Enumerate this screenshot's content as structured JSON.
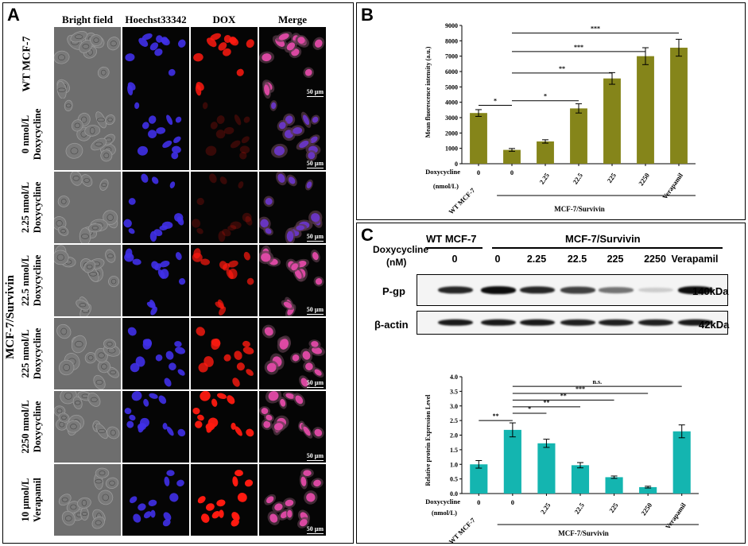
{
  "panel_a": {
    "label": "A",
    "columns": [
      "Bright field",
      "Hoechst33342",
      "DOX",
      "Merge"
    ],
    "wt_label": "WT MCF-7",
    "group_label": "MCF-7/Survivin",
    "rows": [
      {
        "l1": "0 nmol/L",
        "l2": "Doxycycline"
      },
      {
        "l1": "2.25 nmol/L",
        "l2": "Doxycycline"
      },
      {
        "l1": "22.5 nmol/L",
        "l2": "Doxycycline"
      },
      {
        "l1": "225 nmol/L",
        "l2": "Doxycycline"
      },
      {
        "l1": "2250 nmol/L",
        "l2": "Doxycycline"
      },
      {
        "l1": "10 μmol/L",
        "l2": "Verapamil"
      }
    ],
    "scale_bar": "50 μm",
    "dox_intensity": [
      0.85,
      0.2,
      0.2,
      0.7,
      0.8,
      0.95,
      1.0
    ]
  },
  "panel_b": {
    "label": "B",
    "chart_data": {
      "type": "bar",
      "ylabel": "Mean fluorescence intensity (a.u.)",
      "ylim": [
        0,
        9000
      ],
      "yticks": [
        "0",
        "1000",
        "2000",
        "3000",
        "4000",
        "5000",
        "6000",
        "7000",
        "8000",
        "9000"
      ],
      "categories": [
        "0",
        "0",
        "2.25",
        "22.5",
        "225",
        "2250",
        "Verapamil"
      ],
      "values": [
        3300,
        900,
        1450,
        3600,
        5550,
        7000,
        7550
      ],
      "errors": [
        220,
        90,
        110,
        300,
        380,
        550,
        550
      ],
      "x_row_label": "Doxycycline",
      "x_row_unit": "(nmol/L)",
      "wt_label": "WT MCF-7",
      "group_label": "MCF-7/Survivin",
      "bar_color": "#85851a",
      "significance": [
        {
          "from": 0,
          "to": 1,
          "y": 3800,
          "label": "*"
        },
        {
          "from": 1,
          "to": 3,
          "y": 4100,
          "label": "*"
        },
        {
          "from": 1,
          "to": 4,
          "y": 5900,
          "label": "**"
        },
        {
          "from": 1,
          "to": 5,
          "y": 7300,
          "label": "***"
        },
        {
          "from": 1,
          "to": 6,
          "y": 8500,
          "label": "***"
        }
      ]
    }
  },
  "panel_c": {
    "label": "C",
    "blot": {
      "wt_label": "WT MCF-7",
      "group_label": "MCF-7/Survivin",
      "dox_label": "Doxycycline",
      "dox_unit": "(nM)",
      "lanes": [
        "0",
        "0",
        "2.25",
        "22.5",
        "225",
        "2250",
        "Verapamil"
      ],
      "pgp_label": "P-gp",
      "pgp_kda": "140kDa",
      "pgp_intensity": [
        0.85,
        0.95,
        0.85,
        0.75,
        0.55,
        0.2,
        0.95
      ],
      "actin_label": "β-actin",
      "actin_kda": "42kDa",
      "actin_intensity": [
        0.9,
        0.9,
        0.9,
        0.88,
        0.88,
        0.88,
        0.9
      ]
    },
    "chart_data": {
      "type": "bar",
      "ylabel": "Relative protein Expression Level",
      "ylim": [
        0,
        4.0
      ],
      "yticks": [
        "0.0",
        "0.5",
        "1.0",
        "1.5",
        "2.0",
        "2.5",
        "3.0",
        "3.5",
        "4.0"
      ],
      "categories": [
        "0",
        "0",
        "2.25",
        "22.5",
        "225",
        "2250",
        "Verapamil"
      ],
      "values": [
        1.0,
        2.18,
        1.72,
        0.97,
        0.56,
        0.22,
        2.13
      ],
      "errors": [
        0.13,
        0.24,
        0.14,
        0.09,
        0.04,
        0.03,
        0.22
      ],
      "x_row_label": "Doxycycline",
      "x_row_unit": "(nmol/L)",
      "wt_label": "WT MCF-7",
      "group_label": "MCF-7/Survivin",
      "bar_color": "#14b5b0",
      "significance": [
        {
          "from": 0,
          "to": 1,
          "y": 2.5,
          "label": "**"
        },
        {
          "from": 1,
          "to": 2,
          "y": 2.75,
          "label": "*"
        },
        {
          "from": 1,
          "to": 3,
          "y": 2.97,
          "label": "**"
        },
        {
          "from": 1,
          "to": 4,
          "y": 3.2,
          "label": "**"
        },
        {
          "from": 1,
          "to": 5,
          "y": 3.43,
          "label": "***"
        },
        {
          "from": 1,
          "to": 6,
          "y": 3.67,
          "label": "n.s."
        }
      ]
    }
  }
}
